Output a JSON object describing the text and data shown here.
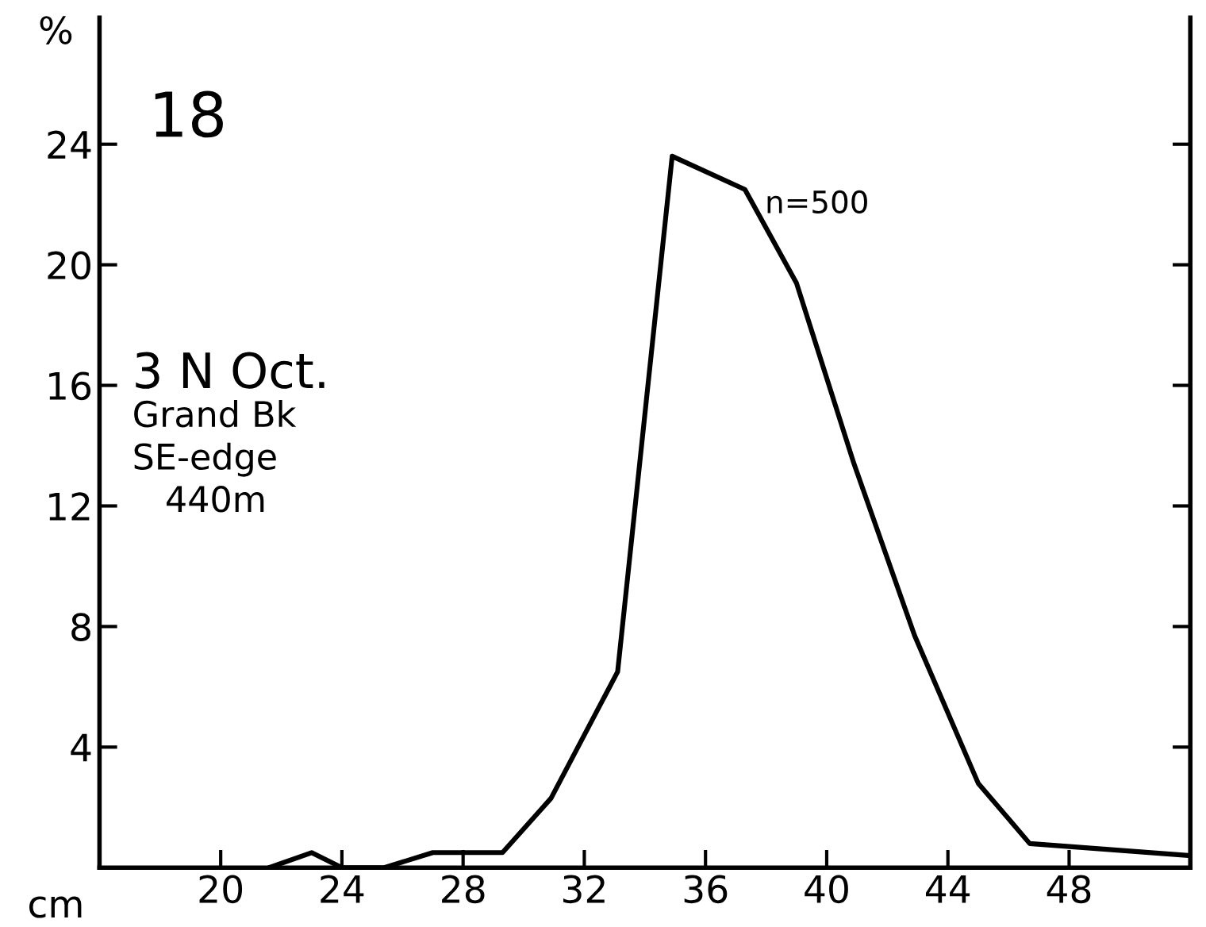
{
  "chart_data": {
    "type": "line",
    "xlabel": "cm",
    "ylabel": "%",
    "annotations": [
      "18",
      "3 N Oct.",
      "Grand Bk",
      "SE-edge",
      "440m",
      "n=500"
    ],
    "x": [
      21.6,
      23,
      24,
      25.4,
      27,
      29.3,
      30.9,
      33.1,
      34.9,
      37.3,
      39,
      40.9,
      42.9,
      45,
      46.7,
      52
    ],
    "series": [
      {
        "color": "#000000",
        "values": [
          0,
          0.5,
          0,
          0,
          0.5,
          0.5,
          2.3,
          6.5,
          23.6,
          22.5,
          19.4,
          13.4,
          7.7,
          2.8,
          0.8,
          0.4
        ]
      }
    ],
    "xlim": [
      16,
      52
    ],
    "ylim": [
      0,
      28.2
    ],
    "xticks": [
      20,
      24,
      28,
      32,
      36,
      40,
      44,
      48
    ],
    "yticks": [
      4,
      8,
      12,
      16,
      20,
      24
    ],
    "grid": false,
    "legend": false,
    "marker": "none",
    "line_style": "solid"
  }
}
